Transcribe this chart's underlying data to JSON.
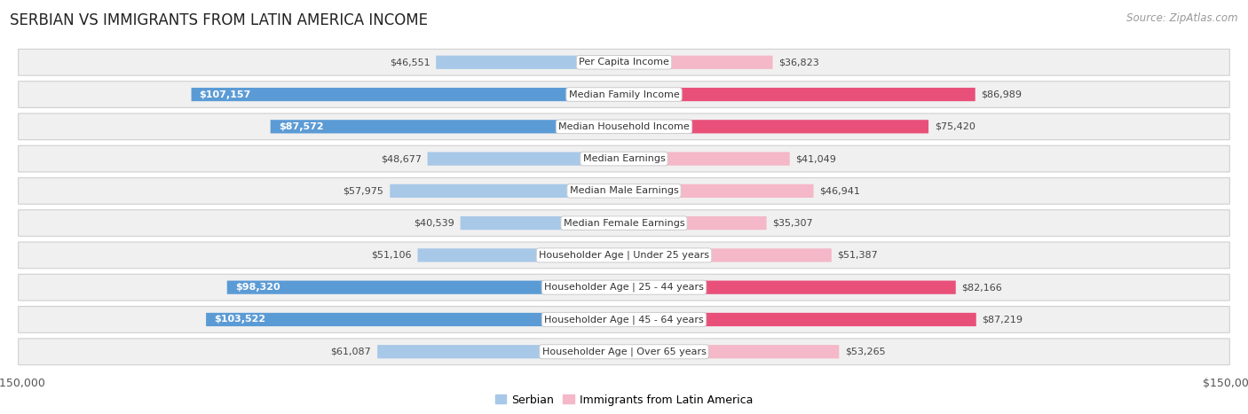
{
  "title": "SERBIAN VS IMMIGRANTS FROM LATIN AMERICA INCOME",
  "source": "Source: ZipAtlas.com",
  "categories": [
    "Per Capita Income",
    "Median Family Income",
    "Median Household Income",
    "Median Earnings",
    "Median Male Earnings",
    "Median Female Earnings",
    "Householder Age | Under 25 years",
    "Householder Age | 25 - 44 years",
    "Householder Age | 45 - 64 years",
    "Householder Age | Over 65 years"
  ],
  "serbian_values": [
    46551,
    107157,
    87572,
    48677,
    57975,
    40539,
    51106,
    98320,
    103522,
    61087
  ],
  "latin_values": [
    36823,
    86989,
    75420,
    41049,
    46941,
    35307,
    51387,
    82166,
    87219,
    53265
  ],
  "serbian_labels": [
    "$46,551",
    "$107,157",
    "$87,572",
    "$48,677",
    "$57,975",
    "$40,539",
    "$51,106",
    "$98,320",
    "$103,522",
    "$61,087"
  ],
  "latin_labels": [
    "$36,823",
    "$86,989",
    "$75,420",
    "$41,049",
    "$46,941",
    "$35,307",
    "$51,387",
    "$82,166",
    "$87,219",
    "$53,265"
  ],
  "serbian_color_light": "#a8c8e8",
  "serbian_color_dark": "#5b9bd5",
  "latin_color_light": "#f4b8c8",
  "latin_color_dark": "#e8507a",
  "row_bg_color": "#f0f0f0",
  "row_border_color": "#d0d0d0",
  "max_value": 150000,
  "legend_serbian": "Serbian",
  "legend_latin": "Immigrants from Latin America",
  "title_fontsize": 12,
  "source_fontsize": 8.5,
  "label_fontsize": 8,
  "category_fontsize": 8,
  "axis_label": "$150,000",
  "white_label_threshold": 65000
}
